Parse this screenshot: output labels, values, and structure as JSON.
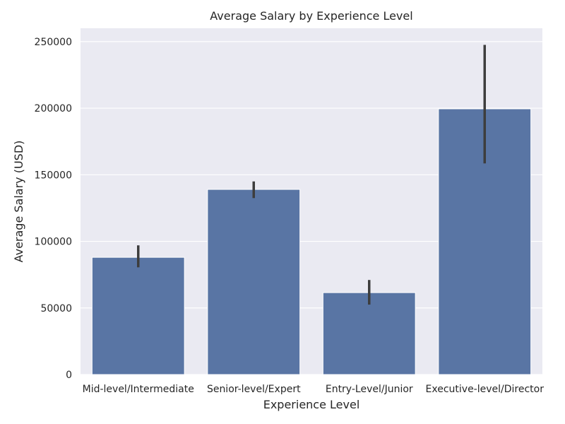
{
  "chart_data": {
    "type": "bar",
    "title": "Average Salary by Experience Level",
    "xlabel": "Experience Level",
    "ylabel": "Average Salary (USD)",
    "categories": [
      "Mid-level/Intermediate",
      "Senior-level/Expert",
      "Entry-Level/Junior",
      "Executive-level/Director"
    ],
    "values": [
      88000,
      139000,
      61500,
      199500
    ],
    "error_low": [
      80500,
      132500,
      52500,
      158500
    ],
    "error_high": [
      97000,
      145000,
      71000,
      247500
    ],
    "ylim": [
      0,
      260000
    ],
    "yticks": [
      0,
      50000,
      100000,
      150000,
      200000,
      250000
    ],
    "ytick_labels": [
      "0",
      "50000",
      "100000",
      "150000",
      "200000",
      "250000"
    ],
    "grid": true,
    "colors": {
      "bar": "#5975a4",
      "errorbar": "#3d3d3d",
      "background": "#eaeaf2",
      "grid": "#ffffff"
    }
  }
}
